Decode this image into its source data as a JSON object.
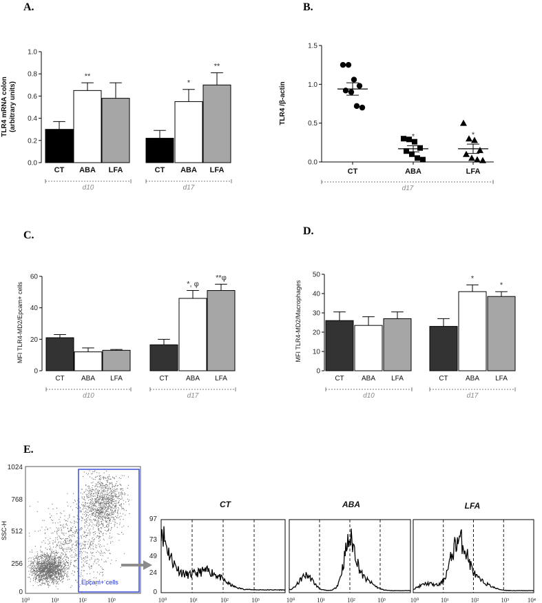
{
  "panels": {
    "A": {
      "letter": "A.",
      "ylabel_line1": "TLR4 mRNA colon",
      "ylabel_line2": "(arbitrary units)",
      "groups": [
        "d10",
        "d17"
      ]
    },
    "B": {
      "letter": "B.",
      "ylabel": "TLR4 /β-actin",
      "groups": [
        "d17"
      ]
    },
    "C": {
      "letter": "C.",
      "ylabel": "MFI TLR4-MD2/Epcam+ cells",
      "groups": [
        "d10",
        "d17"
      ]
    },
    "D": {
      "letter": "D.",
      "ylabel": "MFI TLR4-MD2/Macrophages",
      "groups": [
        "d10",
        "d17"
      ]
    },
    "E": {
      "letter": "E.",
      "scatter_ylabel": "SSC-H",
      "scatter_yticks": [
        "1024",
        "768",
        "512",
        "256",
        "0"
      ],
      "gate_label": "Epcam+ cells",
      "hist_titles": [
        "CT",
        "ABA",
        "LFA"
      ],
      "hist_yticks": [
        "97",
        "73",
        "49",
        "24",
        "0"
      ]
    }
  },
  "chart_data": [
    {
      "type": "bar",
      "panel": "A",
      "ylim": [
        0,
        1.0
      ],
      "yticks": [
        "0.0",
        "0.2",
        "0.4",
        "0.6",
        "0.8",
        "1.0"
      ],
      "categories": [
        "CT",
        "ABA",
        "LFA",
        "CT",
        "ABA",
        "LFA"
      ],
      "values": [
        0.3,
        0.65,
        0.58,
        0.22,
        0.55,
        0.7
      ],
      "errors": [
        0.07,
        0.07,
        0.14,
        0.07,
        0.11,
        0.11
      ],
      "significance": [
        "",
        "**",
        "",
        "",
        "*",
        "**"
      ],
      "fill_colors": [
        "#000000",
        "#ffffff",
        "#a6a6a6",
        "#000000",
        "#ffffff",
        "#a6a6a6"
      ]
    },
    {
      "type": "scatter",
      "panel": "B",
      "ylim": [
        0,
        1.5
      ],
      "yticks": [
        "0.0",
        "0.5",
        "1.0",
        "1.5"
      ],
      "categories": [
        "CT",
        "ABA",
        "LFA"
      ],
      "means": [
        0.94,
        0.17,
        0.17
      ],
      "sems": [
        0.08,
        0.04,
        0.06
      ],
      "significance": [
        "",
        "*",
        "*"
      ],
      "points": [
        [
          1.25,
          1.25,
          1.06,
          0.98,
          0.92,
          0.9,
          0.72,
          0.7
        ],
        [
          0.3,
          0.29,
          0.26,
          0.18,
          0.14,
          0.1,
          0.05,
          0.03
        ],
        [
          0.5,
          0.3,
          0.28,
          0.15,
          0.1,
          0.05,
          0.03,
          0.02
        ]
      ],
      "markers": [
        "circle",
        "square",
        "triangle"
      ]
    },
    {
      "type": "bar",
      "panel": "C",
      "ylim": [
        0,
        60
      ],
      "yticks": [
        "0",
        "20",
        "40",
        "60"
      ],
      "categories": [
        "CT",
        "ABA",
        "LFA",
        "CT",
        "ABA",
        "LFA"
      ],
      "values": [
        21,
        12,
        13,
        16.5,
        46,
        51
      ],
      "errors": [
        2,
        2.5,
        0.5,
        3.5,
        5,
        4
      ],
      "significance": [
        "",
        "",
        "",
        "",
        "*, φ",
        "**φ"
      ],
      "fill_colors": [
        "#333333",
        "#ffffff",
        "#a6a6a6",
        "#333333",
        "#ffffff",
        "#a6a6a6"
      ]
    },
    {
      "type": "bar",
      "panel": "D",
      "ylim": [
        0,
        50
      ],
      "yticks": [
        "0",
        "10",
        "20",
        "30",
        "40",
        "50"
      ],
      "categories": [
        "CT",
        "ABA",
        "LFA",
        "CT",
        "ABA",
        "LFA"
      ],
      "values": [
        26,
        23.5,
        27,
        23,
        41,
        38.5
      ],
      "errors": [
        4.5,
        4.5,
        3.5,
        4,
        3.5,
        2.5
      ],
      "significance": [
        "",
        "",
        "",
        "",
        "*",
        "*"
      ],
      "fill_colors": [
        "#333333",
        "#ffffff",
        "#a6a6a6",
        "#333333",
        "#ffffff",
        "#a6a6a6"
      ]
    }
  ],
  "log_ticks": [
    "10⁰",
    "10¹",
    "10²",
    "10³",
    "10⁴"
  ]
}
